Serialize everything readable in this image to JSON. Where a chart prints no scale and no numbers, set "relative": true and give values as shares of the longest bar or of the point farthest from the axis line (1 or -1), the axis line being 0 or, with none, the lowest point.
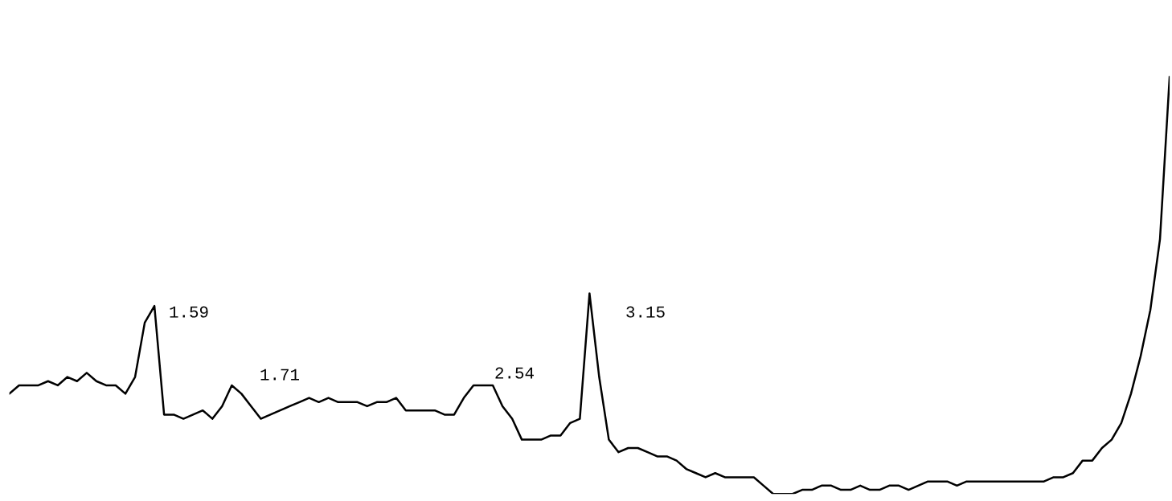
{
  "chart_data": {
    "type": "line",
    "relative": true,
    "color": "#000000",
    "categories": [
      null,
      null,
      null,
      null,
      null,
      null,
      null,
      null,
      null,
      null,
      null,
      null,
      null,
      null,
      null,
      null,
      null,
      null,
      null,
      null,
      null,
      null,
      null,
      null,
      null,
      null,
      null,
      null,
      null,
      null,
      null,
      null,
      null,
      null,
      null,
      null,
      null,
      null,
      null,
      null,
      null,
      null,
      null,
      null,
      null,
      null,
      null,
      null,
      null,
      null,
      null,
      null,
      null,
      null,
      null,
      null,
      null,
      null,
      null,
      null,
      null,
      null,
      null,
      null,
      null,
      null,
      null,
      null,
      null,
      null,
      null,
      null,
      null,
      null,
      null,
      null,
      null,
      null,
      null,
      null,
      null,
      null,
      null,
      null,
      null,
      null,
      null,
      null,
      null,
      null,
      null,
      null,
      null,
      null,
      null,
      null,
      null,
      null,
      null,
      null,
      null,
      null,
      null,
      null,
      null,
      null,
      null,
      null,
      null,
      null,
      null,
      null,
      null,
      null,
      null,
      null,
      null,
      null,
      null,
      null,
      null
    ],
    "values": [
      0.24,
      0.26,
      0.26,
      0.26,
      0.27,
      0.26,
      0.28,
      0.27,
      0.29,
      0.27,
      0.26,
      0.26,
      0.24,
      0.28,
      0.41,
      0.45,
      0.19,
      0.19,
      0.18,
      0.19,
      0.2,
      0.18,
      0.21,
      0.26,
      0.24,
      0.21,
      0.18,
      0.19,
      0.2,
      0.21,
      0.22,
      0.23,
      0.22,
      0.23,
      0.22,
      0.22,
      0.22,
      0.21,
      0.22,
      0.22,
      0.23,
      0.2,
      0.2,
      0.2,
      0.2,
      0.19,
      0.19,
      0.23,
      0.26,
      0.26,
      0.26,
      0.21,
      0.18,
      0.13,
      0.13,
      0.13,
      0.14,
      0.14,
      0.17,
      0.18,
      0.48,
      0.28,
      0.13,
      0.1,
      0.11,
      0.11,
      0.1,
      0.09,
      0.09,
      0.08,
      0.06,
      0.05,
      0.04,
      0.05,
      0.04,
      0.04,
      0.04,
      0.04,
      0.02,
      0.0,
      0.0,
      0.0,
      0.01,
      0.01,
      0.02,
      0.02,
      0.01,
      0.01,
      0.02,
      0.01,
      0.01,
      0.02,
      0.02,
      0.01,
      0.02,
      0.03,
      0.03,
      0.03,
      0.02,
      0.03,
      0.03,
      0.03,
      0.03,
      0.03,
      0.03,
      0.03,
      0.03,
      0.03,
      0.04,
      0.04,
      0.05,
      0.08,
      0.08,
      0.11,
      0.13,
      0.17,
      0.24,
      0.33,
      0.44,
      0.61,
      1.0
    ],
    "annotations": [
      "1.59",
      "1.71",
      "2.54",
      "3.15"
    ]
  }
}
